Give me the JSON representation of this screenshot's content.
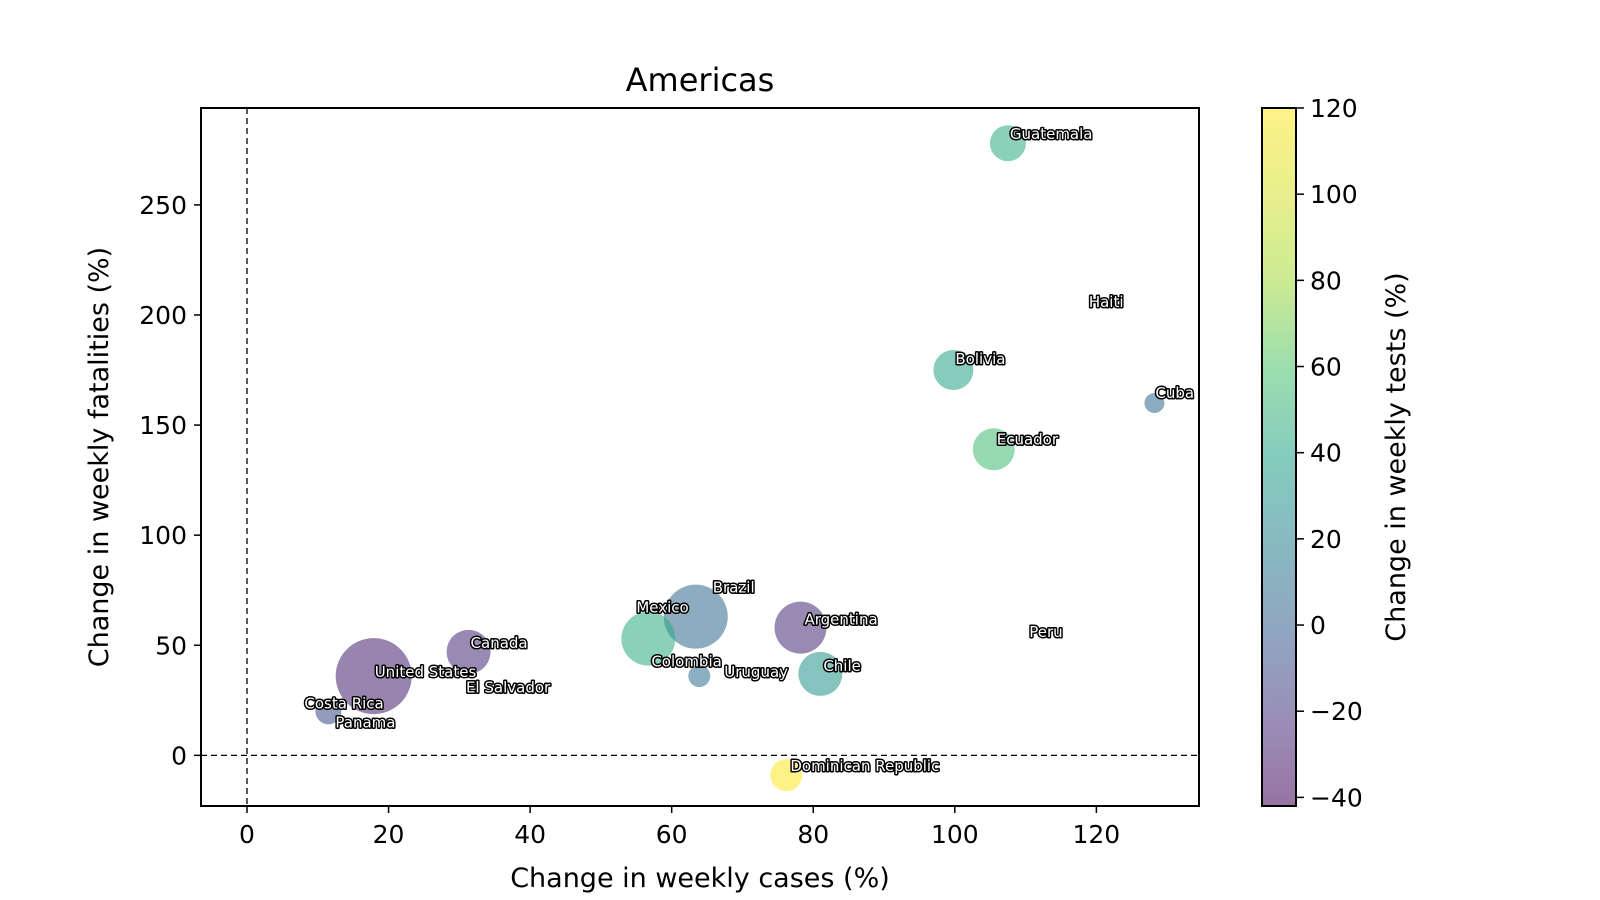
{
  "chart_data": {
    "type": "scatter",
    "title": "Americas",
    "xlabel": "Change in weekly cases (%)",
    "ylabel": "Change in weekly fatalities (%)",
    "colorbar_label": "Change in weekly tests (%)",
    "xlim": [
      -6.5,
      134.5
    ],
    "ylim": [
      -23,
      294
    ],
    "x_ticks": [
      0,
      20,
      40,
      60,
      80,
      100,
      120
    ],
    "y_ticks": [
      0,
      50,
      100,
      150,
      200,
      250
    ],
    "colorbar_range": [
      -42,
      120
    ],
    "colorbar_ticks": [
      -40,
      -20,
      0,
      20,
      40,
      60,
      80,
      100,
      120
    ],
    "colormap": "viridis",
    "reference_lines": {
      "x": 0,
      "y": 0
    },
    "grid": false,
    "points": [
      {
        "name": "Guatemala",
        "x": 107.5,
        "y": 278,
        "tests": 45,
        "size": 18
      },
      {
        "name": "Haiti",
        "x": 119.5,
        "y": 205,
        "tests": null,
        "size": 0
      },
      {
        "name": "Bolivia",
        "x": 99.8,
        "y": 175,
        "tests": 40,
        "size": 20
      },
      {
        "name": "Cuba",
        "x": 128.2,
        "y": 160,
        "tests": 5,
        "size": 10
      },
      {
        "name": "Ecuador",
        "x": 105.5,
        "y": 139,
        "tests": 55,
        "size": 21
      },
      {
        "name": "Mexico",
        "x": 56.7,
        "y": 53,
        "tests": 45,
        "size": 27
      },
      {
        "name": "Brazil",
        "x": 63.4,
        "y": 63,
        "tests": 5,
        "size": 32
      },
      {
        "name": "Argentina",
        "x": 78.2,
        "y": 58,
        "tests": -25,
        "size": 26
      },
      {
        "name": "Peru",
        "x": 111.5,
        "y": 56,
        "tests": null,
        "size": 0
      },
      {
        "name": "Canada",
        "x": 31.3,
        "y": 47,
        "tests": -25,
        "size": 22
      },
      {
        "name": "Colombia",
        "x": 56.7,
        "y": 53,
        "tests": 45,
        "size": 0
      },
      {
        "name": "United States",
        "x": 17.9,
        "y": 36,
        "tests": -30,
        "size": 38
      },
      {
        "name": "Uruguay",
        "x": 63.9,
        "y": 36,
        "tests": 10,
        "size": 11
      },
      {
        "name": "Chile",
        "x": 81.0,
        "y": 37,
        "tests": 30,
        "size": 22
      },
      {
        "name": "El Salvador",
        "x": 31.5,
        "y": 30,
        "tests": null,
        "size": 0
      },
      {
        "name": "Costa Rica",
        "x": 11.5,
        "y": 20,
        "tests": -10,
        "size": 13
      },
      {
        "name": "Panama",
        "x": 11.5,
        "y": 20,
        "tests": -10,
        "size": 0
      },
      {
        "name": "Dominican Republic",
        "x": 76.2,
        "y": -9,
        "tests": 120,
        "size": 16
      }
    ]
  }
}
